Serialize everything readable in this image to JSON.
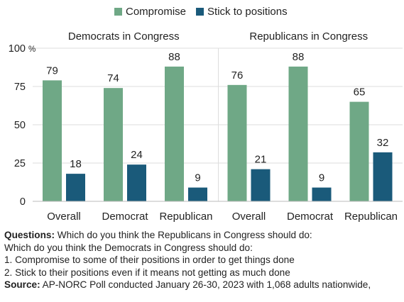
{
  "chart_data": {
    "type": "bar",
    "colors": {
      "compromise": "#6fa886",
      "stick": "#1a5a7a",
      "grid": "#dddddd"
    },
    "legend": [
      "Compromise",
      "Stick to positions"
    ],
    "y_unit": "%",
    "ylim": [
      0,
      100
    ],
    "yticks": [
      0,
      25,
      50,
      75,
      100
    ],
    "panels": [
      {
        "title": "Democrats in Congress",
        "categories": [
          "Overall",
          "Democrat",
          "Republican"
        ],
        "series": [
          {
            "name": "Compromise",
            "values": [
              79,
              74,
              88
            ]
          },
          {
            "name": "Stick to positions",
            "values": [
              18,
              24,
              9
            ]
          }
        ]
      },
      {
        "title": "Republicans in Congress",
        "categories": [
          "Overall",
          "Democrat",
          "Republican"
        ],
        "series": [
          {
            "name": "Compromise",
            "values": [
              76,
              88,
              65
            ]
          },
          {
            "name": "Stick to positions",
            "values": [
              21,
              9,
              32
            ]
          }
        ]
      }
    ]
  },
  "notes": {
    "questions_label": "Questions:",
    "questions_line1": " Which do you think the Republicans in Congress should do:",
    "questions_line2": "Which do you think the Democrats in Congress should do:",
    "option_1": "1. Compromise to some of their positions in order to get things done",
    "option_2": "2. Stick to their positions even if it means not getting as much done",
    "source_label": "Source:",
    "source_text": " AP-NORC Poll conducted January 26-30, 2023 with 1,068 adults nationwide,"
  }
}
